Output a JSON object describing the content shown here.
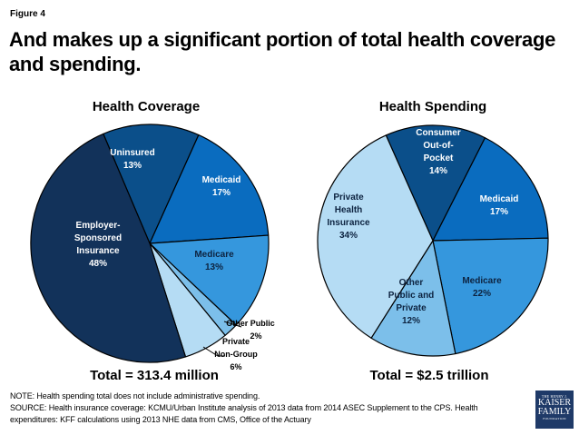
{
  "figure_label": "Figure 4",
  "title": "And makes up a significant portion of total health coverage and spending.",
  "chart_data": [
    {
      "type": "pie",
      "title": "Health Coverage",
      "total_label": "Total = 313.4 million",
      "slices": [
        {
          "name": "Uninsured",
          "label_lines": [
            "Uninsured",
            "13%"
          ],
          "value": 13,
          "color": "#0b4f8a",
          "text_color": "#ffffff"
        },
        {
          "name": "Medicaid",
          "label_lines": [
            "Medicaid",
            "17%"
          ],
          "value": 17,
          "color": "#0a6cbf",
          "text_color": "#ffffff"
        },
        {
          "name": "Medicare",
          "label_lines": [
            "Medicare",
            "13%"
          ],
          "value": 13,
          "color": "#3597dd",
          "text_color": "#0d2340"
        },
        {
          "name": "Other Public",
          "label_lines": [
            "Other Public",
            "2%"
          ],
          "value": 2,
          "color": "#7cbfea",
          "text_color": "#000000",
          "outside": true
        },
        {
          "name": "Private Non-Group",
          "label_lines": [
            "Private",
            "Non-Group",
            "6%"
          ],
          "value": 6,
          "color": "#b5dcf4",
          "text_color": "#000000",
          "outside": true
        },
        {
          "name": "Employer-Sponsored Insurance",
          "label_lines": [
            "Employer-",
            "Sponsored",
            "Insurance",
            "48%"
          ],
          "value": 48,
          "color": "#12325a",
          "text_color": "#ffffff"
        }
      ]
    },
    {
      "type": "pie",
      "title": "Health Spending",
      "total_label": "Total = $2.5 trillion",
      "slices": [
        {
          "name": "Consumer Out-of-Pocket",
          "label_lines": [
            "Consumer",
            "Out-of-",
            "Pocket",
            "14%"
          ],
          "value": 14,
          "color": "#0b4f8a",
          "text_color": "#ffffff"
        },
        {
          "name": "Medicaid",
          "label_lines": [
            "Medicaid",
            "17%"
          ],
          "value": 17,
          "color": "#0a6cbf",
          "text_color": "#ffffff"
        },
        {
          "name": "Medicare",
          "label_lines": [
            "Medicare",
            "22%"
          ],
          "value": 22,
          "color": "#3597dd",
          "text_color": "#0d2340"
        },
        {
          "name": "Other Public and Private",
          "label_lines": [
            "Other",
            "Public and",
            "Private",
            "12%"
          ],
          "value": 12,
          "color": "#7cbfea",
          "text_color": "#0d2340"
        },
        {
          "name": "Private Health Insurance",
          "label_lines": [
            "Private",
            "Health",
            "Insurance",
            "34%"
          ],
          "value": 34,
          "color": "#b5dcf4",
          "text_color": "#0d2340"
        }
      ]
    }
  ],
  "note": "NOTE: Health spending total does not include administrative spending.",
  "source": "SOURCE: Health insurance coverage: KCMU/Urban Institute analysis of 2013 data from 2014 ASEC Supplement to the CPS. Health expenditures: KFF calculations using 2013 NHE data from CMS, Office of the Actuary",
  "logo": {
    "line1": "THE HENRY J.",
    "line2": "KAISER",
    "line3": "FAMILY",
    "line4": "FOUNDATION"
  }
}
